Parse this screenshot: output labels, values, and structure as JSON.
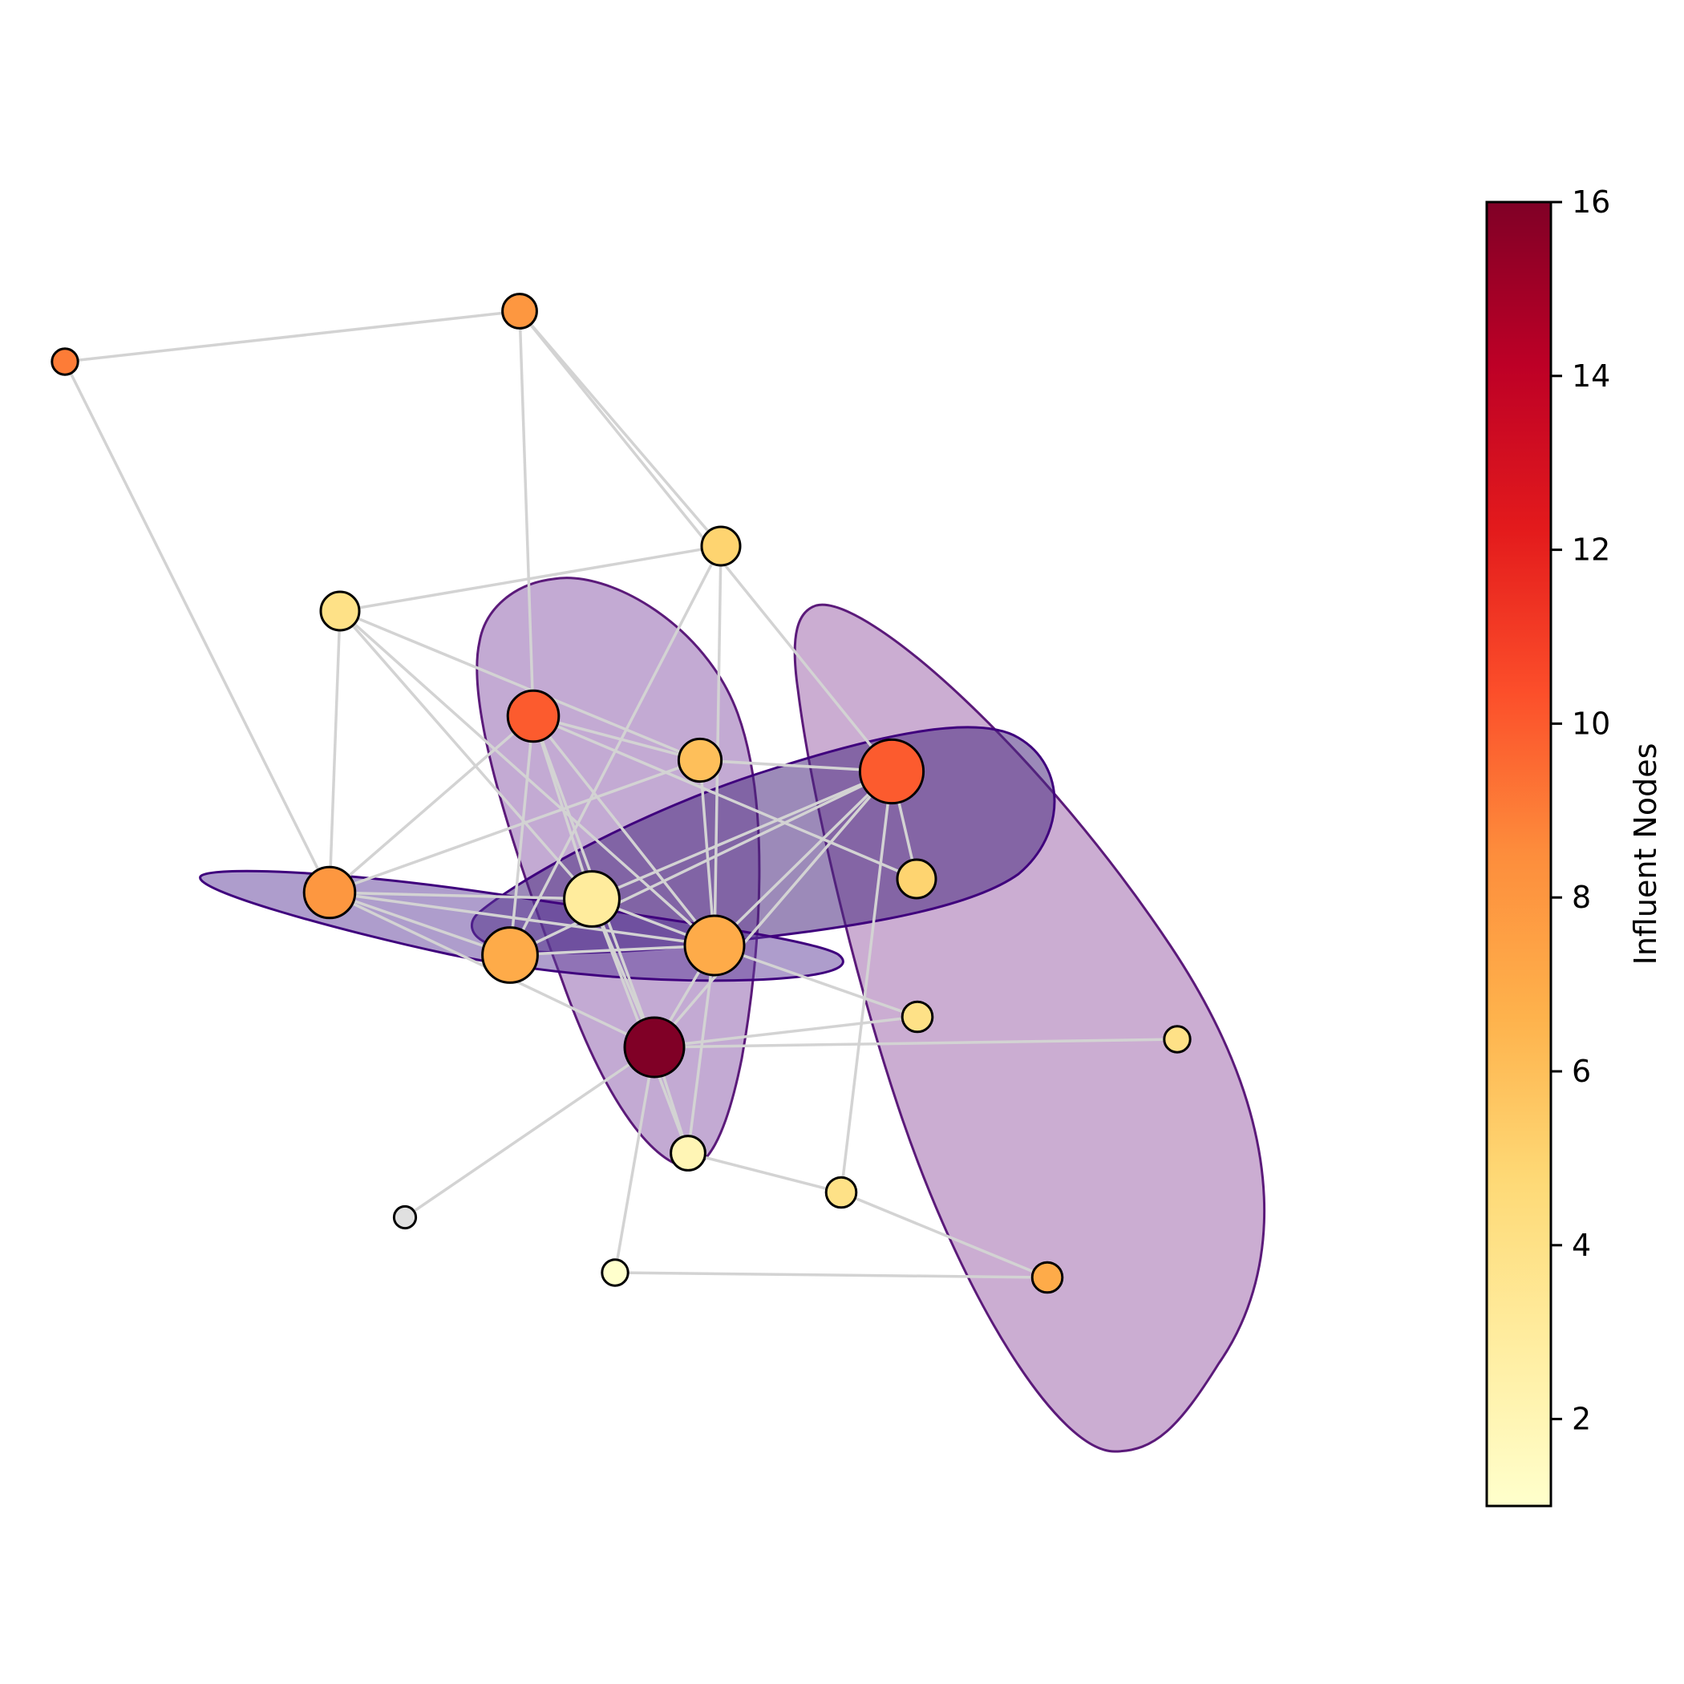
{
  "chart_data": {
    "type": "network",
    "title": "",
    "colorbar": {
      "label": "Influent Nodes",
      "min": 1,
      "max": 16,
      "ticks": [
        2,
        4,
        6,
        8,
        10,
        12,
        14,
        16
      ],
      "tick_labels": [
        "2",
        "4",
        "6",
        "8",
        "10",
        "12",
        "14",
        "16"
      ],
      "colormap": [
        "#ffffcc",
        "#ffeda0",
        "#fed976",
        "#feb24c",
        "#fd8d3c",
        "#fc4e2a",
        "#e31a1c",
        "#bd0026",
        "#800026"
      ]
    },
    "nodes": [
      {
        "id": "n0",
        "influent": 9,
        "degree": 2
      },
      {
        "id": "n1",
        "influent": 8,
        "degree": 4
      },
      {
        "id": "n2",
        "influent": 5,
        "degree": 5
      },
      {
        "id": "n3",
        "influent": 4,
        "degree": 5
      },
      {
        "id": "n4",
        "influent": 10,
        "degree": 8
      },
      {
        "id": "n5",
        "influent": 6,
        "degree": 6
      },
      {
        "id": "n6",
        "influent": 10,
        "degree": 11
      },
      {
        "id": "n7",
        "influent": 5,
        "degree": 5
      },
      {
        "id": "n8",
        "influent": 8,
        "degree": 8
      },
      {
        "id": "n9",
        "influent": 3,
        "degree": 9
      },
      {
        "id": "n10",
        "influent": 7,
        "degree": 9
      },
      {
        "id": "n11",
        "influent": 7,
        "degree": 10
      },
      {
        "id": "n12",
        "influent": 4,
        "degree": 3
      },
      {
        "id": "n13",
        "influent": 4,
        "degree": 2
      },
      {
        "id": "n14",
        "influent": 16,
        "degree": 10
      },
      {
        "id": "n15",
        "influent": 2,
        "degree": 4
      },
      {
        "id": "n16",
        "influent": 4,
        "degree": 3
      },
      {
        "id": "n17",
        "influent": 0,
        "degree": 1
      },
      {
        "id": "n18",
        "influent": 1,
        "degree": 2
      },
      {
        "id": "n19",
        "influent": 7,
        "degree": 3
      }
    ],
    "edges": [
      [
        "n0",
        "n1"
      ],
      [
        "n0",
        "n8"
      ],
      [
        "n1",
        "n4"
      ],
      [
        "n1",
        "n2"
      ],
      [
        "n1",
        "n6"
      ],
      [
        "n2",
        "n3"
      ],
      [
        "n2",
        "n10"
      ],
      [
        "n2",
        "n11"
      ],
      [
        "n3",
        "n8"
      ],
      [
        "n3",
        "n9"
      ],
      [
        "n3",
        "n5"
      ],
      [
        "n3",
        "n11"
      ],
      [
        "n4",
        "n5"
      ],
      [
        "n4",
        "n7"
      ],
      [
        "n4",
        "n9"
      ],
      [
        "n4",
        "n10"
      ],
      [
        "n4",
        "n11"
      ],
      [
        "n4",
        "n14"
      ],
      [
        "n4",
        "n8"
      ],
      [
        "n5",
        "n6"
      ],
      [
        "n5",
        "n11"
      ],
      [
        "n5",
        "n8"
      ],
      [
        "n6",
        "n7"
      ],
      [
        "n6",
        "n9"
      ],
      [
        "n6",
        "n10"
      ],
      [
        "n6",
        "n11"
      ],
      [
        "n6",
        "n16"
      ],
      [
        "n6",
        "n14"
      ],
      [
        "n8",
        "n9"
      ],
      [
        "n8",
        "n10"
      ],
      [
        "n8",
        "n11"
      ],
      [
        "n8",
        "n14"
      ],
      [
        "n9",
        "n14"
      ],
      [
        "n9",
        "n15"
      ],
      [
        "n9",
        "n11"
      ],
      [
        "n10",
        "n11"
      ],
      [
        "n11",
        "n12"
      ],
      [
        "n11",
        "n14"
      ],
      [
        "n11",
        "n15"
      ],
      [
        "n12",
        "n14"
      ],
      [
        "n13",
        "n14"
      ],
      [
        "n14",
        "n17"
      ],
      [
        "n14",
        "n18"
      ],
      [
        "n14",
        "n15"
      ],
      [
        "n15",
        "n16"
      ],
      [
        "n16",
        "n19"
      ],
      [
        "n18",
        "n19"
      ]
    ],
    "communities": [
      {
        "name": "community-1",
        "fill": "#8b4a9c",
        "edge": "#5b1a7a",
        "opacity": 0.45
      },
      {
        "name": "community-2",
        "fill": "#8856a7",
        "edge": "#5b1a7a",
        "opacity": 0.5
      },
      {
        "name": "community-3",
        "fill": "#4b2a80",
        "edge": "#3f007d",
        "opacity": 0.55
      },
      {
        "name": "community-4",
        "fill": "#5e3c99",
        "edge": "#3f007d",
        "opacity": 0.5
      }
    ],
    "isolated_node_color": "#e0e0e0"
  }
}
